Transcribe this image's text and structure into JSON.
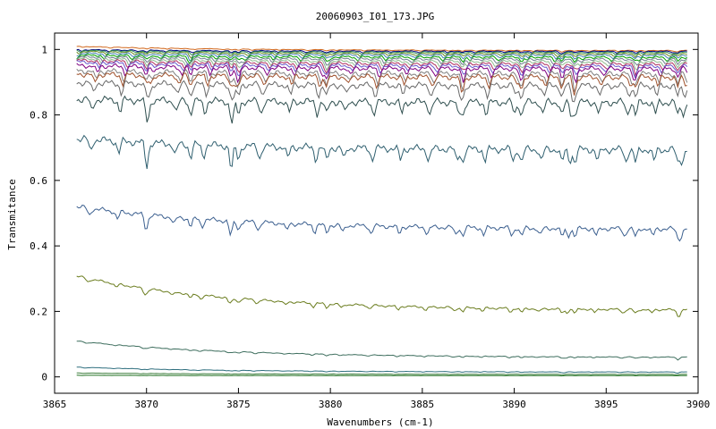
{
  "chart_data": {
    "type": "line",
    "title": "20060903_I01_173.JPG",
    "xlabel": "Wavenumbers (cm-1)",
    "ylabel": "Transmitance",
    "xlim": [
      3865,
      3900
    ],
    "ylim": [
      -0.05,
      1.05
    ],
    "x_ticks": [
      3865,
      3870,
      3875,
      3880,
      3885,
      3890,
      3895,
      3900
    ],
    "x_tick_labels": [
      "3865",
      "3870",
      "3875",
      "3880",
      "3885",
      "3890",
      "3895",
      "3900"
    ],
    "y_ticks": [
      0,
      0.2,
      0.4,
      0.6,
      0.8,
      1
    ],
    "y_tick_labels": [
      "0",
      "0.2",
      "0.4",
      "0.6",
      "0.8",
      "1"
    ],
    "x_range_data": [
      3866.2,
      3899.4
    ],
    "grid": false,
    "legend": "none",
    "series": [
      {
        "color": "#d2691e",
        "start": 1.01,
        "end": 0.997,
        "dip": 0.003
      },
      {
        "color": "#000080",
        "start": 1.0,
        "end": 0.995,
        "dip": 0.005
      },
      {
        "color": "#2e8b57",
        "start": 0.998,
        "end": 0.992,
        "dip": 0.006
      },
      {
        "color": "#6b8e23",
        "start": 0.995,
        "end": 0.988,
        "dip": 0.008
      },
      {
        "color": "#4682b4",
        "start": 0.99,
        "end": 0.984,
        "dip": 0.01
      },
      {
        "color": "#00a000",
        "start": 0.985,
        "end": 0.978,
        "dip": 0.012
      },
      {
        "color": "#708090",
        "start": 0.98,
        "end": 0.972,
        "dip": 0.014
      },
      {
        "color": "#8fbc8f",
        "start": 0.975,
        "end": 0.965,
        "dip": 0.016
      },
      {
        "color": "#b03060",
        "start": 0.97,
        "end": 0.958,
        "dip": 0.018
      },
      {
        "color": "#6a5acd",
        "start": 0.965,
        "end": 0.952,
        "dip": 0.02
      },
      {
        "color": "#800080",
        "start": 0.955,
        "end": 0.945,
        "dip": 0.025
      },
      {
        "color": "#808080",
        "start": 0.94,
        "end": 0.93,
        "dip": 0.03
      },
      {
        "color": "#a0522d",
        "start": 0.93,
        "end": 0.92,
        "dip": 0.03
      },
      {
        "color": "#696969",
        "start": 0.905,
        "end": 0.895,
        "dip": 0.035
      },
      {
        "color": "#2f4f4f",
        "start": 0.855,
        "end": 0.845,
        "dip": 0.04
      },
      {
        "color": "#2f5f6f",
        "start": 0.735,
        "end": 0.7,
        "dip": 0.04
      },
      {
        "color": "#3b5f8f",
        "start": 0.525,
        "end": 0.455,
        "dip": 0.025
      },
      {
        "color": "#6b7d1f",
        "start": 0.31,
        "end": 0.205,
        "dip": 0.012
      },
      {
        "color": "#3f6f5f",
        "start": 0.11,
        "end": 0.06,
        "dip": 0.004
      },
      {
        "color": "#2f6f7f",
        "start": 0.03,
        "end": 0.015,
        "dip": 0.002
      },
      {
        "color": "#3f7f3f",
        "start": 0.012,
        "end": 0.008,
        "dip": 0.001
      },
      {
        "color": "#207020",
        "start": 0.005,
        "end": 0.004,
        "dip": 0.0005
      }
    ]
  }
}
